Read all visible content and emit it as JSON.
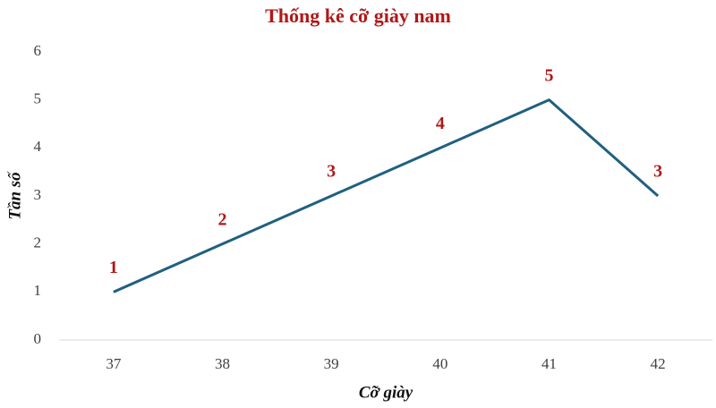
{
  "chart_data": {
    "type": "line",
    "title": "Thống kê cỡ giày nam",
    "x_label": "Cỡ giày",
    "y_label": "Tần số",
    "categories": [
      "37",
      "38",
      "39",
      "40",
      "41",
      "42"
    ],
    "values": [
      1,
      2,
      3,
      4,
      5,
      3
    ],
    "color": "#1f6080",
    "label_color": "#b01818",
    "ylim": [
      0,
      6
    ],
    "yticks": [
      0,
      1,
      2,
      3,
      4,
      5,
      6
    ],
    "grid": false
  }
}
